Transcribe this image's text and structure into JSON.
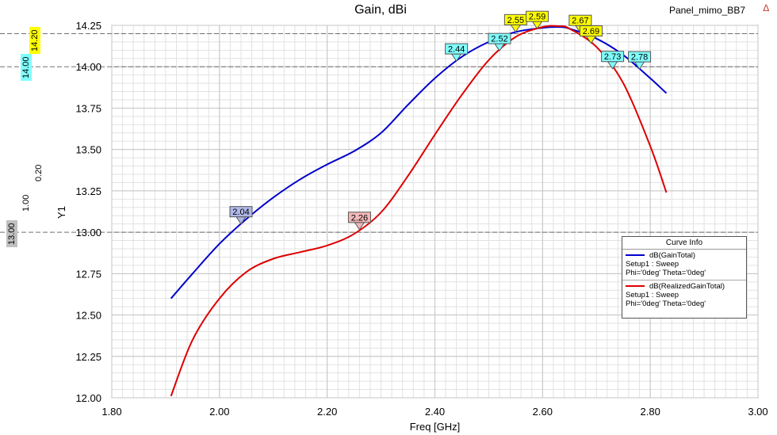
{
  "header": {
    "title": "Gain, dBi",
    "project": "Panel_mimo_BB7",
    "logo_glyph": "∆"
  },
  "side_markers": [
    {
      "text": "14.20",
      "bg": "#ffff00"
    },
    {
      "text": "14.00",
      "bg": "#80ffff"
    },
    {
      "text": "13.00",
      "bg": "#c0c0c0"
    },
    {
      "text": "1.00",
      "bg": "transparent"
    },
    {
      "text": "0.20",
      "bg": "transparent"
    }
  ],
  "chart_data": {
    "type": "line",
    "title": "Gain, dBi",
    "xlabel": "Freq [GHz]",
    "ylabel": "Y1",
    "xlim": [
      1.8,
      3.0
    ],
    "ylim": [
      12.0,
      14.25
    ],
    "xticks": [
      "1.80",
      "2.00",
      "2.20",
      "2.40",
      "2.60",
      "2.80",
      "3.00"
    ],
    "yticks": [
      "12.00",
      "12.25",
      "12.50",
      "12.75",
      "13.00",
      "13.25",
      "13.50",
      "13.75",
      "14.00",
      "14.25"
    ],
    "grid": true,
    "ref_lines": [
      14.2,
      14.0,
      13.0
    ],
    "series": [
      {
        "name": "dB(GainTotal)",
        "color": "#0000cc",
        "x": [
          1.91,
          1.95,
          2.0,
          2.05,
          2.1,
          2.15,
          2.2,
          2.25,
          2.3,
          2.35,
          2.4,
          2.45,
          2.5,
          2.55,
          2.6,
          2.63,
          2.65,
          2.7,
          2.75,
          2.8,
          2.83
        ],
        "y": [
          12.6,
          12.75,
          12.93,
          13.08,
          13.21,
          13.32,
          13.41,
          13.49,
          13.6,
          13.77,
          13.93,
          14.06,
          14.15,
          14.21,
          14.235,
          14.24,
          14.23,
          14.17,
          14.07,
          13.93,
          13.84
        ]
      },
      {
        "name": "dB(RealizedGainTotal)",
        "color": "#dd0000",
        "x": [
          1.91,
          1.95,
          2.0,
          2.05,
          2.1,
          2.15,
          2.2,
          2.25,
          2.3,
          2.35,
          2.4,
          2.45,
          2.5,
          2.55,
          2.6,
          2.63,
          2.65,
          2.7,
          2.75,
          2.8,
          2.83
        ],
        "y": [
          12.01,
          12.35,
          12.6,
          12.76,
          12.84,
          12.88,
          12.92,
          12.99,
          13.12,
          13.34,
          13.59,
          13.83,
          14.04,
          14.18,
          14.24,
          14.245,
          14.23,
          14.12,
          13.9,
          13.52,
          13.24
        ]
      }
    ],
    "markers": [
      {
        "label": "2.04",
        "x": 2.04,
        "series": 0,
        "color": "#b0b8e8"
      },
      {
        "label": "2.26",
        "x": 2.26,
        "series": 1,
        "color": "#f2b8b8"
      },
      {
        "label": "2.44",
        "x": 2.44,
        "series": 0,
        "color": "#80ffff"
      },
      {
        "label": "2.52",
        "x": 2.52,
        "series": 1,
        "color": "#80ffff"
      },
      {
        "label": "2.55",
        "x": 2.55,
        "series": 0,
        "color": "#ffff00"
      },
      {
        "label": "2.59",
        "x": 2.59,
        "series": 0,
        "color": "#ffff00"
      },
      {
        "label": "2.67",
        "x": 2.67,
        "series": 0,
        "color": "#ffff00"
      },
      {
        "label": "2.69",
        "x": 2.69,
        "series": 1,
        "color": "#ffff00"
      },
      {
        "label": "2.73",
        "x": 2.73,
        "series": 1,
        "color": "#80ffff"
      },
      {
        "label": "2.78",
        "x": 2.78,
        "series": 0,
        "color": "#80ffff"
      }
    ]
  },
  "legend": {
    "header": "Curve Info",
    "entries": [
      {
        "title": "dB(GainTotal)",
        "line1": "Setup1 : Sweep",
        "line2": "Phi='0deg' Theta='0deg'",
        "color": "#0000cc"
      },
      {
        "title": "dB(RealizedGainTotal)",
        "line1": "Setup1 : Sweep",
        "line2": "Phi='0deg' Theta='0deg'",
        "color": "#dd0000"
      }
    ]
  }
}
